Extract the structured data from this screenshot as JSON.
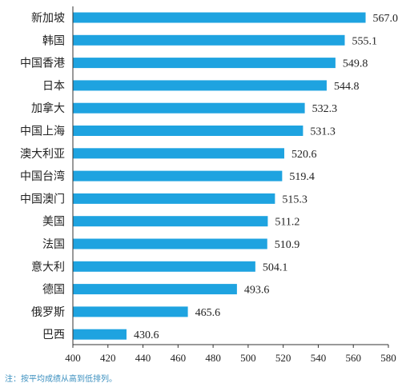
{
  "chart_data": {
    "type": "bar",
    "orientation": "horizontal",
    "categories": [
      "新加坡",
      "韩国",
      "中国香港",
      "日本",
      "加拿大",
      "中国上海",
      "澳大利亚",
      "中国台湾",
      "中国澳门",
      "美国",
      "法国",
      "意大利",
      "德国",
      "俄罗斯",
      "巴西"
    ],
    "values": [
      567.0,
      555.1,
      549.8,
      544.8,
      532.3,
      531.3,
      520.6,
      519.4,
      515.3,
      511.2,
      510.9,
      504.1,
      493.6,
      465.6,
      430.6
    ],
    "value_labels": [
      "567.0",
      "555.1",
      "549.8",
      "544.8",
      "532.3",
      "531.3",
      "520.6",
      "519.4",
      "515.3",
      "511.2",
      "510.9",
      "504.1",
      "493.6",
      "465.6",
      "430.6"
    ],
    "xlim": [
      400,
      580
    ],
    "xticks": [
      400,
      420,
      440,
      460,
      480,
      500,
      520,
      540,
      560,
      580
    ],
    "bar_color": "#1ea3e0",
    "grid": false,
    "title": "",
    "xlabel": "",
    "ylabel": ""
  },
  "note": "注：按平均成绩从高到低排列。"
}
